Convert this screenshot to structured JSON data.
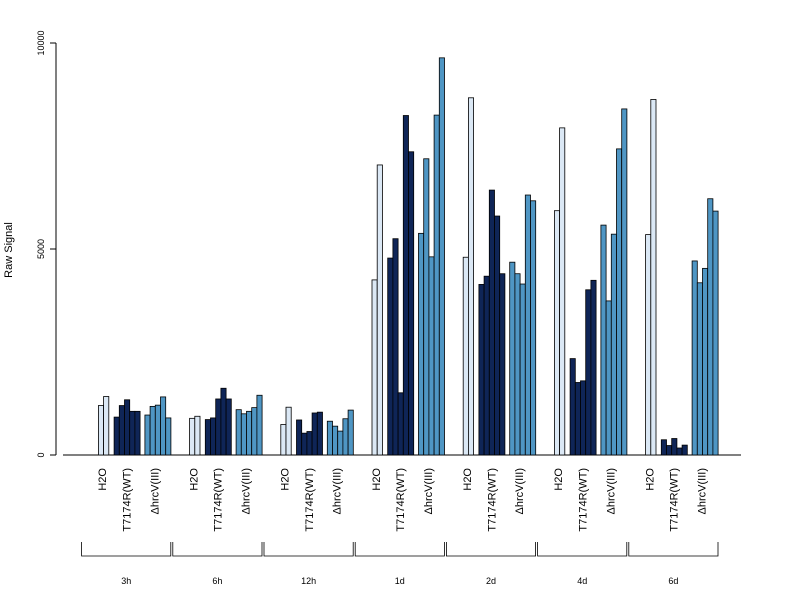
{
  "chart_data": {
    "type": "bar",
    "ylabel": "Raw Signal",
    "ylim": [
      0,
      10000
    ],
    "yticks": [
      0,
      5000,
      10000
    ],
    "grid": false,
    "legend": "none",
    "sample_labels": [
      "H2O",
      "T7174R(WT)",
      "ΔhrcV(III)"
    ],
    "colors": {
      "H2O": "#dbe8f5",
      "T7174R(WT)": "#0f2557",
      "ΔhrcV(III)": "#4f96c4"
    },
    "groups": [
      {
        "time": "3h",
        "bars": [
          {
            "sample": "H2O",
            "values": [
              1200,
              1420
            ]
          },
          {
            "sample": "T7174R(WT)",
            "values": [
              920,
              1200,
              1340,
              1060,
              1060
            ]
          },
          {
            "sample": "ΔhrcV(III)",
            "values": [
              970,
              1180,
              1210,
              1410,
              900
            ]
          }
        ]
      },
      {
        "time": "6h",
        "bars": [
          {
            "sample": "H2O",
            "values": [
              890,
              940
            ]
          },
          {
            "sample": "T7174R(WT)",
            "values": [
              860,
              900,
              1360,
              1620,
              1360
            ]
          },
          {
            "sample": "ΔhrcV(III)",
            "values": [
              1100,
              1000,
              1060,
              1150,
              1450
            ]
          }
        ]
      },
      {
        "time": "12h",
        "bars": [
          {
            "sample": "H2O",
            "values": [
              740,
              1160
            ]
          },
          {
            "sample": "T7174R(WT)",
            "values": [
              850,
              530,
              570,
              1020,
              1040
            ]
          },
          {
            "sample": "ΔhrcV(III)",
            "values": [
              820,
              700,
              580,
              880,
              1090
            ]
          }
        ]
      },
      {
        "time": "1d",
        "bars": [
          {
            "sample": "H2O",
            "values": [
              4250,
              7040
            ]
          },
          {
            "sample": "T7174R(WT)",
            "values": [
              4780,
              5250,
              1510,
              8240,
              7360
            ]
          },
          {
            "sample": "ΔhrcV(III)",
            "values": [
              5380,
              7190,
              4810,
              8250,
              9640
            ]
          }
        ]
      },
      {
        "time": "2d",
        "bars": [
          {
            "sample": "H2O",
            "values": [
              4800,
              8670
            ]
          },
          {
            "sample": "T7174R(WT)",
            "values": [
              4140,
              4340,
              6430,
              5800,
              4400
            ]
          },
          {
            "sample": "ΔhrcV(III)",
            "values": [
              4680,
              4400,
              4150,
              6310,
              6170
            ]
          }
        ]
      },
      {
        "time": "4d",
        "bars": [
          {
            "sample": "H2O",
            "values": [
              5930,
              7940
            ]
          },
          {
            "sample": "T7174R(WT)",
            "values": [
              2340,
              1760,
              1800,
              4010,
              4240
            ]
          },
          {
            "sample": "ΔhrcV(III)",
            "values": [
              5580,
              3740,
              5360,
              7430,
              8400
            ]
          }
        ]
      },
      {
        "time": "6d",
        "bars": [
          {
            "sample": "H2O",
            "values": [
              5350,
              8630
            ]
          },
          {
            "sample": "T7174R(WT)",
            "values": [
              370,
              230,
              400,
              170,
              240
            ]
          },
          {
            "sample": "ΔhrcV(III)",
            "values": [
              4710,
              4180,
              4530,
              6220,
              5920
            ]
          }
        ]
      }
    ]
  }
}
